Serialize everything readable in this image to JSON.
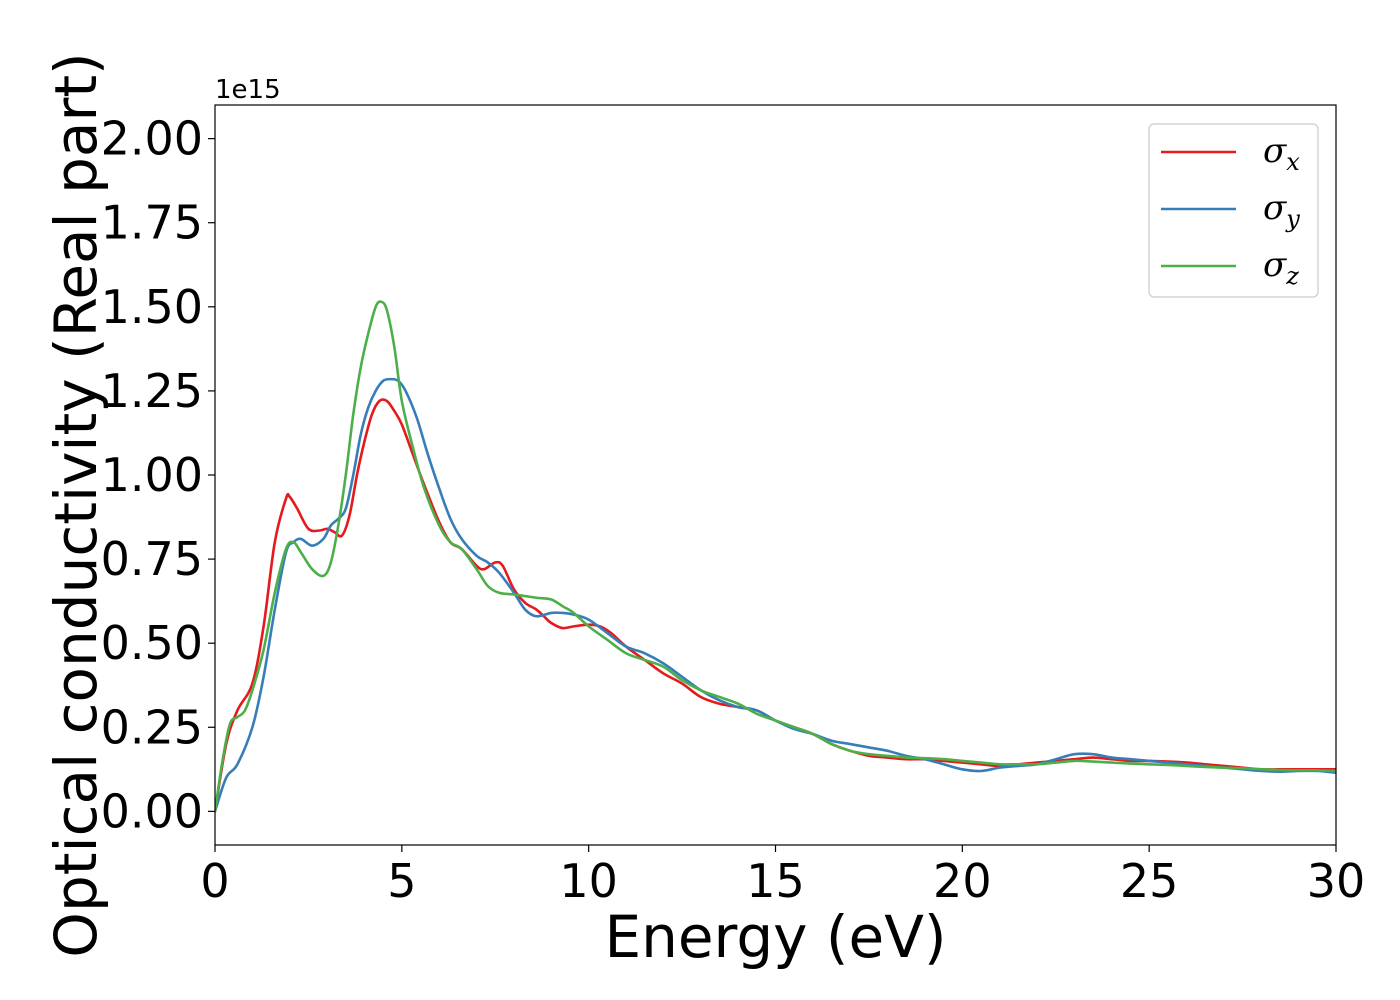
{
  "chart_data": {
    "type": "line",
    "xlabel": "Energy (eV)",
    "ylabel": "Optical conductivity (Real part)",
    "y_offset_label": "1e15",
    "xlim": [
      0,
      30
    ],
    "ylim": [
      -0.1,
      2.1
    ],
    "x_ticks": [
      0,
      5,
      10,
      15,
      20,
      25,
      30
    ],
    "x_tick_labels": [
      "0",
      "5",
      "10",
      "15",
      "20",
      "25",
      "30"
    ],
    "y_ticks": [
      0,
      0.25,
      0.5,
      0.75,
      1.0,
      1.25,
      1.5,
      1.75,
      2.0
    ],
    "y_tick_labels": [
      "0.00",
      "0.25",
      "0.50",
      "0.75",
      "1.00",
      "1.25",
      "1.50",
      "1.75",
      "2.00"
    ],
    "grid": false,
    "legend_position": "top-right",
    "series": [
      {
        "name": "σx",
        "symbol": "σ",
        "subscript": "x",
        "color": "#e41a1c",
        "x": [
          0,
          0.3,
          0.6,
          1.0,
          1.3,
          1.6,
          1.9,
          2.0,
          2.2,
          2.5,
          2.8,
          3.0,
          3.2,
          3.4,
          3.6,
          3.8,
          4.0,
          4.2,
          4.4,
          4.6,
          4.8,
          5.0,
          5.3,
          5.6,
          6.0,
          6.3,
          6.6,
          7.0,
          7.2,
          7.5,
          7.7,
          8.0,
          8.3,
          8.6,
          8.8,
          9.0,
          9.3,
          9.6,
          10.0,
          10.3,
          10.6,
          11.0,
          11.5,
          12.0,
          12.5,
          13.0,
          13.5,
          14.0,
          14.5,
          15.0,
          15.5,
          16.0,
          16.5,
          17.0,
          17.5,
          18.0,
          18.5,
          19.0,
          19.5,
          20.0,
          20.5,
          21.0,
          21.5,
          22.0,
          22.5,
          23.0,
          23.5,
          24.0,
          24.5,
          25.0,
          25.5,
          26.0,
          26.5,
          27.0,
          27.5,
          28.0,
          28.5,
          29.0,
          29.5,
          30.0
        ],
        "y": [
          0.0,
          0.2,
          0.3,
          0.38,
          0.55,
          0.8,
          0.93,
          0.935,
          0.9,
          0.84,
          0.835,
          0.84,
          0.83,
          0.82,
          0.88,
          1.0,
          1.1,
          1.18,
          1.22,
          1.22,
          1.19,
          1.15,
          1.06,
          0.97,
          0.86,
          0.8,
          0.78,
          0.73,
          0.72,
          0.74,
          0.73,
          0.66,
          0.62,
          0.6,
          0.58,
          0.56,
          0.545,
          0.55,
          0.555,
          0.55,
          0.53,
          0.49,
          0.45,
          0.41,
          0.38,
          0.34,
          0.32,
          0.31,
          0.3,
          0.27,
          0.25,
          0.23,
          0.2,
          0.18,
          0.165,
          0.16,
          0.155,
          0.155,
          0.15,
          0.145,
          0.14,
          0.135,
          0.14,
          0.145,
          0.15,
          0.155,
          0.16,
          0.155,
          0.15,
          0.15,
          0.148,
          0.145,
          0.14,
          0.135,
          0.13,
          0.125,
          0.125,
          0.125,
          0.125,
          0.125
        ]
      },
      {
        "name": "σy",
        "symbol": "σ",
        "subscript": "y",
        "color": "#377eb8",
        "x": [
          0,
          0.3,
          0.6,
          1.0,
          1.3,
          1.6,
          1.9,
          2.1,
          2.3,
          2.6,
          2.9,
          3.1,
          3.3,
          3.5,
          3.7,
          3.9,
          4.1,
          4.3,
          4.5,
          4.7,
          4.9,
          5.1,
          5.4,
          5.7,
          6.0,
          6.3,
          6.6,
          7.0,
          7.3,
          7.6,
          8.0,
          8.3,
          8.6,
          9.0,
          9.3,
          9.6,
          10.0,
          10.5,
          11.0,
          11.5,
          12.0,
          12.5,
          13.0,
          13.5,
          14.0,
          14.5,
          15.0,
          15.5,
          16.0,
          16.5,
          17.0,
          17.5,
          18.0,
          18.5,
          19.0,
          19.5,
          20.0,
          20.5,
          21.0,
          21.5,
          22.0,
          22.5,
          23.0,
          23.5,
          24.0,
          24.5,
          25.0,
          25.5,
          26.0,
          26.5,
          27.0,
          27.5,
          28.0,
          28.5,
          29.0,
          29.5,
          30.0
        ],
        "y": [
          0.0,
          0.1,
          0.14,
          0.25,
          0.4,
          0.6,
          0.77,
          0.8,
          0.81,
          0.79,
          0.81,
          0.85,
          0.87,
          0.9,
          1.0,
          1.12,
          1.2,
          1.25,
          1.28,
          1.285,
          1.28,
          1.25,
          1.17,
          1.06,
          0.96,
          0.87,
          0.81,
          0.76,
          0.74,
          0.71,
          0.65,
          0.6,
          0.58,
          0.59,
          0.59,
          0.585,
          0.57,
          0.53,
          0.49,
          0.47,
          0.44,
          0.4,
          0.36,
          0.33,
          0.31,
          0.3,
          0.27,
          0.245,
          0.23,
          0.21,
          0.2,
          0.19,
          0.18,
          0.165,
          0.155,
          0.14,
          0.125,
          0.12,
          0.13,
          0.135,
          0.14,
          0.155,
          0.17,
          0.17,
          0.16,
          0.155,
          0.15,
          0.145,
          0.14,
          0.135,
          0.13,
          0.125,
          0.12,
          0.118,
          0.12,
          0.12,
          0.115
        ]
      },
      {
        "name": "σz",
        "symbol": "σ",
        "subscript": "z",
        "color": "#4daf4a",
        "x": [
          0,
          0.2,
          0.4,
          0.6,
          0.8,
          1.0,
          1.3,
          1.6,
          1.9,
          2.1,
          2.3,
          2.6,
          2.9,
          3.1,
          3.3,
          3.5,
          3.7,
          3.9,
          4.1,
          4.3,
          4.45,
          4.6,
          4.8,
          5.0,
          5.3,
          5.6,
          6.0,
          6.3,
          6.6,
          7.0,
          7.3,
          7.6,
          8.0,
          8.3,
          8.6,
          9.0,
          9.3,
          9.6,
          10.0,
          10.5,
          11.0,
          11.5,
          12.0,
          12.5,
          13.0,
          13.5,
          14.0,
          14.5,
          15.0,
          15.5,
          16.0,
          16.5,
          17.0,
          17.5,
          18.0,
          18.5,
          19.0,
          19.5,
          20.0,
          20.5,
          21.0,
          21.5,
          22.0,
          22.5,
          23.0,
          23.5,
          24.0,
          24.5,
          25.0,
          25.5,
          26.0,
          26.5,
          27.0,
          27.5,
          28.0,
          28.5,
          29.0,
          29.5,
          30.0
        ],
        "y": [
          0.0,
          0.15,
          0.26,
          0.28,
          0.3,
          0.36,
          0.48,
          0.65,
          0.78,
          0.8,
          0.77,
          0.72,
          0.7,
          0.74,
          0.85,
          1.0,
          1.18,
          1.32,
          1.42,
          1.5,
          1.515,
          1.49,
          1.38,
          1.22,
          1.08,
          0.96,
          0.85,
          0.8,
          0.78,
          0.72,
          0.67,
          0.65,
          0.645,
          0.64,
          0.635,
          0.63,
          0.61,
          0.59,
          0.55,
          0.51,
          0.47,
          0.45,
          0.43,
          0.39,
          0.36,
          0.34,
          0.32,
          0.29,
          0.27,
          0.25,
          0.23,
          0.2,
          0.18,
          0.17,
          0.165,
          0.16,
          0.158,
          0.155,
          0.15,
          0.145,
          0.14,
          0.14,
          0.14,
          0.145,
          0.15,
          0.148,
          0.145,
          0.142,
          0.14,
          0.138,
          0.135,
          0.132,
          0.13,
          0.128,
          0.125,
          0.123,
          0.122,
          0.122,
          0.12
        ]
      }
    ]
  }
}
